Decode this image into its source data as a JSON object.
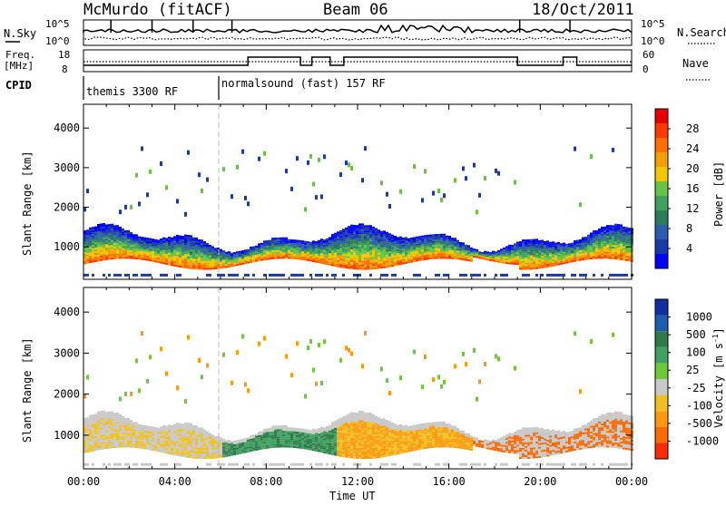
{
  "header": {
    "station": "McMurdo (fitACF)",
    "beam": "Beam 06",
    "date": "18/Oct/2011"
  },
  "top_panels": {
    "nsky_label": "N.Sky",
    "nsky_ticks": [
      "10^5",
      "10^0"
    ],
    "nsearch_label": "N.Search",
    "nsearch_ticks": [
      "10^5",
      "10^0"
    ],
    "freq_label": "Freq.",
    "freq_unit": "[MHz]",
    "freq_ticks": [
      "18",
      "8"
    ],
    "nave_label": "Nave",
    "nave_ticks": [
      "60",
      "0"
    ],
    "cpid_label": "CPID",
    "cpid_segments": [
      {
        "label": "themis 3300 RF",
        "start_hour": 0
      },
      {
        "label": "normalsound (fast) 157 RF",
        "start_hour": 6
      }
    ]
  },
  "colors": {
    "power_scale": [
      "#0000ff",
      "#1a3aa8",
      "#2a5cb0",
      "#2c7d57",
      "#3fa05f",
      "#67c443",
      "#f0c800",
      "#f0a000",
      "#ff7000",
      "#ff3800",
      "#e80000"
    ],
    "velocity_scale": [
      "#1030a0",
      "#1c5db0",
      "#2f7a4a",
      "#3fa060",
      "#6dc83a",
      "#c8c8c8",
      "#f0c020",
      "#ff9a10",
      "#ff6a00",
      "#ff2a00"
    ]
  },
  "chart_data": [
    {
      "type": "heatmap",
      "title": "Power",
      "xlabel": "Time UT",
      "ylabel": "Slant Range [km]",
      "x_ticks": [
        "00:00",
        "04:00",
        "08:00",
        "12:00",
        "16:00",
        "20:00",
        "00:00"
      ],
      "xlim_hours": [
        0,
        24
      ],
      "y_ticks": [
        1000,
        2000,
        3000,
        4000
      ],
      "ylim": [
        180,
        4600
      ],
      "colorbar": {
        "label": "Power [dB]",
        "ticks": [
          4,
          8,
          12,
          16,
          20,
          24,
          28
        ]
      },
      "echo_band_km": {
        "low": [
          500,
          1600
        ],
        "core": [
          600,
          1100
        ]
      }
    },
    {
      "type": "heatmap",
      "title": "Velocity",
      "xlabel": "Time UT",
      "ylabel": "Slant Range [km]",
      "x_ticks": [
        "00:00",
        "04:00",
        "08:00",
        "12:00",
        "16:00",
        "20:00",
        "00:00"
      ],
      "xlim_hours": [
        0,
        24
      ],
      "y_ticks": [
        1000,
        2000,
        3000,
        4000
      ],
      "ylim": [
        180,
        4600
      ],
      "colorbar": {
        "label": "Velocity [m s^-1]",
        "ticks": [
          1000,
          500,
          100,
          25,
          -25,
          -100,
          -500,
          -1000
        ]
      },
      "echo_band_km": {
        "low": [
          500,
          1600
        ],
        "core": [
          600,
          1100
        ]
      }
    }
  ],
  "axis": {
    "time_label": "Time UT",
    "slant_label": "Slant Range [km]",
    "power_cb_label": "Power [dB]",
    "velocity_cb_label": "Velocity [m s",
    "velocity_cb_exp": "-1",
    "velocity_cb_close": "]"
  }
}
